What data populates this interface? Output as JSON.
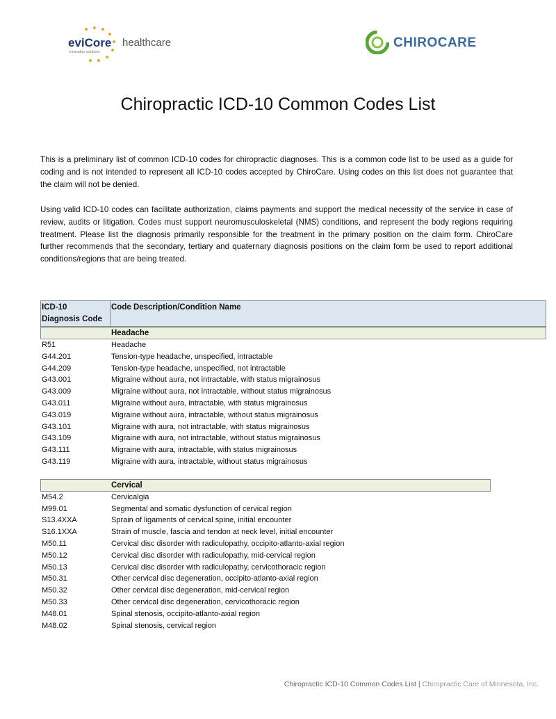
{
  "header": {
    "left_logo": {
      "name": "eviCore",
      "suffix": "healthcare",
      "tagline": "innovative solutions"
    },
    "right_logo": "CHIROCARE"
  },
  "title": "Chiropractic ICD-10 Common Codes List",
  "paragraphs": [
    "This is a preliminary list of common ICD-10 codes for chiropractic diagnoses.  This is a common code list to be used as a guide for coding and is not intended to represent all ICD-10 codes accepted by ChiroCare.  Using codes on this list does not guarantee that the claim will not be denied.",
    "Using valid ICD-10 codes can facilitate authorization, claims payments and support the medical necessity of the service in case of review, audits or litigation.  Codes must support neuromusculoskeletal (NMS) conditions, and represent the body regions requiring treatment.  Please list the diagnosis primarily responsible for the treatment in the primary position on the claim form.  ChiroCare further recommends that the secondary, tertiary and quaternary diagnosis positions on the claim form be used to report additional conditions/regions that are being treated."
  ],
  "table": {
    "headers": [
      "ICD-10 Diagnosis Code",
      "Code Description/Condition Name"
    ],
    "sections": [
      {
        "title": "Headache",
        "rows": [
          [
            "R51",
            "Headache"
          ],
          [
            "G44.201",
            "Tension-type headache, unspecified, intractable"
          ],
          [
            "G44.209",
            "Tension-type headache, unspecified, not intractable"
          ],
          [
            "G43.001",
            "Migraine without aura, not intractable, with status migrainosus"
          ],
          [
            "G43.009",
            "Migraine without aura, not intractable, without status migrainosus"
          ],
          [
            "G43.011",
            "Migraine without aura, intractable, with status migrainosus"
          ],
          [
            "G43.019",
            "Migraine without aura, intractable, without status migrainosus"
          ],
          [
            "G43.101",
            "Migraine with aura, not intractable, with status migrainosus"
          ],
          [
            "G43.109",
            "Migraine with aura, not intractable, without status migrainosus"
          ],
          [
            "G43.111",
            "Migraine with aura, intractable, with status migrainosus"
          ],
          [
            "G43.119",
            "Migraine with aura, intractable, without status migrainosus"
          ]
        ]
      },
      {
        "title": "Cervical",
        "rows": [
          [
            "M54.2",
            "Cervicalgia"
          ],
          [
            "M99.01",
            "Segmental and somatic dysfunction of cervical region"
          ],
          [
            "S13.4XXA",
            "Sprain of ligaments of cervical spine, initial encounter"
          ],
          [
            "S16.1XXA",
            "Strain of muscle, fascia and tendon at neck level, initial encounter"
          ],
          [
            "M50.11",
            "Cervical disc disorder with radiculopathy, occipito-atlanto-axial region"
          ],
          [
            "M50.12",
            "Cervical disc disorder with radiculopathy, mid-cervical region"
          ],
          [
            "M50.13",
            "Cervical disc disorder with radiculopathy, cervicothoracic region"
          ],
          [
            "M50.31",
            "Other cervical disc degeneration, occipito-atlanto-axial region"
          ],
          [
            "M50.32",
            "Other cervical disc degeneration, mid-cervical region"
          ],
          [
            "M50.33",
            "Other cervical disc degeneration, cervicothoracic region"
          ],
          [
            "M48.01",
            "Spinal stenosis, occipito-atlanto-axial region"
          ],
          [
            "M48.02",
            "Spinal stenosis, cervical region"
          ]
        ]
      }
    ]
  },
  "footer": {
    "left": "Chiropractic ICD-10 Common Codes List",
    "separator": "|",
    "right": "Chiropractic Care of Minnesota, Inc."
  }
}
